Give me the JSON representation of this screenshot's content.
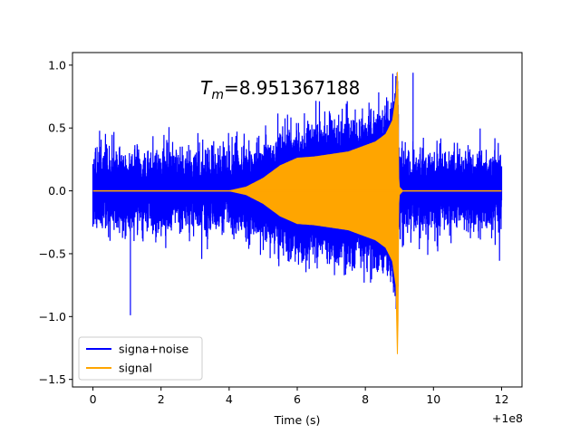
{
  "chart_data": {
    "type": "line",
    "title": "",
    "xlabel": "Time (s)",
    "ylabel": "",
    "x_offset_label": "+1e8",
    "xlim": [
      -0.6,
      12.6
    ],
    "ylim": [
      -1.56,
      1.1
    ],
    "xticks": [
      0,
      2,
      4,
      6,
      8,
      10,
      12
    ],
    "xtick_labels": [
      "0",
      "2",
      "4",
      "6",
      "8",
      "10",
      "12"
    ],
    "yticks": [
      1.0,
      0.5,
      0.0,
      -0.5,
      -1.0,
      -1.5
    ],
    "ytick_labels": [
      "1.0",
      "0.5",
      "0.0",
      "−0.5",
      "−1.0",
      "−1.5"
    ],
    "grid": false,
    "legend_position": "lower-left",
    "annotation": {
      "symbol": "T",
      "subscript": "m",
      "value_text": "=8.951367188",
      "x": 5.5,
      "y": 0.82
    },
    "series": [
      {
        "name": "signa+noise",
        "color": "#0000ff",
        "x_range": [
          0,
          12
        ],
        "baseline_amplitude": 0.4,
        "max": 0.94,
        "min": -0.99
      },
      {
        "name": "signal",
        "color": "#ffa500",
        "x": [
          0,
          4.0,
          4.5,
          5.0,
          5.5,
          6.0,
          6.5,
          7.0,
          7.5,
          8.0,
          8.3,
          8.6,
          8.8,
          8.9,
          8.951,
          8.98,
          9.0,
          9.1,
          12.0
        ],
        "envelope_upper": [
          0.0,
          0.0,
          0.03,
          0.1,
          0.2,
          0.26,
          0.27,
          0.29,
          0.31,
          0.36,
          0.39,
          0.45,
          0.56,
          0.75,
          1.0,
          0.1,
          0.03,
          0.0,
          0.0
        ],
        "envelope_lower": [
          0.0,
          0.0,
          -0.03,
          -0.1,
          -0.2,
          -0.26,
          -0.27,
          -0.29,
          -0.31,
          -0.36,
          -0.39,
          -0.45,
          -0.56,
          -0.75,
          -1.45,
          -0.1,
          -0.03,
          0.0,
          0.0
        ]
      }
    ]
  }
}
